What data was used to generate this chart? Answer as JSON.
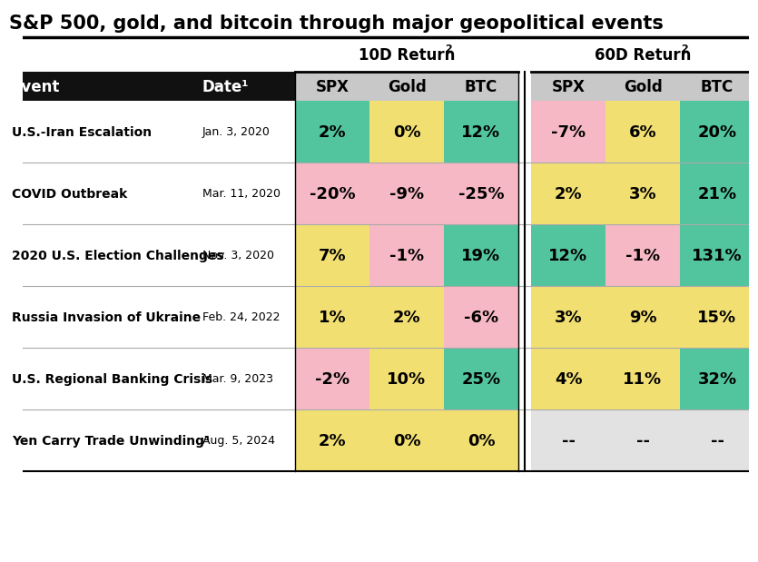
{
  "title": "S&P 500, gold, and bitcoin through major geopolitical events",
  "col_headers": [
    "SPX",
    "Gold",
    "BTC",
    "SPX",
    "Gold",
    "BTC"
  ],
  "events": [
    "U.S.-Iran Escalation",
    "COVID Outbreak",
    "2020 U.S. Election Challenges",
    "Russia Invasion of Ukraine",
    "U.S. Regional Banking Crisis",
    "Yen Carry Trade Unwinding³"
  ],
  "dates": [
    "Jan. 3, 2020",
    "Mar. 11, 2020",
    "Nov. 3, 2020",
    "Feb. 24, 2022",
    "Mar. 9, 2023",
    "Aug. 5, 2024"
  ],
  "data_10d": [
    [
      "2%",
      "0%",
      "12%"
    ],
    [
      "-20%",
      "-9%",
      "-25%"
    ],
    [
      "7%",
      "-1%",
      "19%"
    ],
    [
      "1%",
      "2%",
      "-6%"
    ],
    [
      "-2%",
      "10%",
      "25%"
    ],
    [
      "2%",
      "0%",
      "0%"
    ]
  ],
  "data_60d": [
    [
      "-7%",
      "6%",
      "20%"
    ],
    [
      "2%",
      "3%",
      "21%"
    ],
    [
      "12%",
      "-1%",
      "131%"
    ],
    [
      "3%",
      "9%",
      "15%"
    ],
    [
      "4%",
      "11%",
      "32%"
    ],
    [
      "--",
      "--",
      "--"
    ]
  ],
  "colors_10d": [
    [
      "#52c49e",
      "#f2df72",
      "#52c49e"
    ],
    [
      "#f5b8c4",
      "#f5b8c4",
      "#f5b8c4"
    ],
    [
      "#f2df72",
      "#f5b8c4",
      "#52c49e"
    ],
    [
      "#f2df72",
      "#f2df72",
      "#f5b8c4"
    ],
    [
      "#f5b8c4",
      "#f2df72",
      "#52c49e"
    ],
    [
      "#f2df72",
      "#f2df72",
      "#f2df72"
    ]
  ],
  "colors_60d": [
    [
      "#f5b8c4",
      "#f2df72",
      "#52c49e"
    ],
    [
      "#f2df72",
      "#f2df72",
      "#52c49e"
    ],
    [
      "#52c49e",
      "#f5b8c4",
      "#52c49e"
    ],
    [
      "#f2df72",
      "#f2df72",
      "#f2df72"
    ],
    [
      "#f2df72",
      "#f2df72",
      "#52c49e"
    ],
    [
      "#e2e2e2",
      "#e2e2e2",
      "#e2e2e2"
    ]
  ],
  "header_bg": "#111111",
  "header_fg": "#ffffff",
  "subheader_bg": "#c8c8c8",
  "bg_color": "#ffffff",
  "title_fontsize": 15,
  "cell_fontsize": 13,
  "col_hdr_fontsize": 12,
  "event_fontsize": 10,
  "date_fontsize": 9
}
